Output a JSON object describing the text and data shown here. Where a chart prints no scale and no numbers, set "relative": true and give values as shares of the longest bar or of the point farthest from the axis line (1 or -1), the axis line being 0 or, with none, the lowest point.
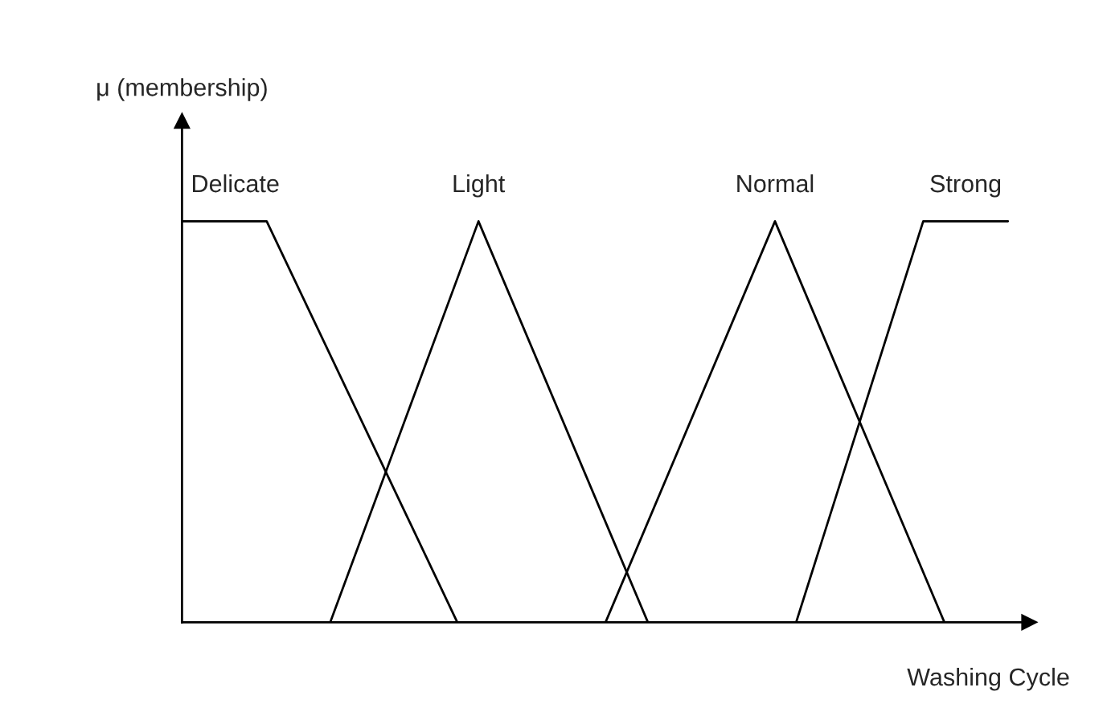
{
  "chart_data": {
    "type": "line",
    "relative": true,
    "xlabel": "Washing Cycle",
    "ylabel": "μ (membership)",
    "marker": "none",
    "line_style": "solid",
    "categories": [
      null,
      null,
      null,
      null,
      null,
      null,
      null,
      null,
      null,
      null,
      null,
      null,
      null,
      null,
      null,
      null,
      null,
      null,
      null,
      null,
      null,
      null,
      null,
      null,
      null,
      null,
      null,
      null,
      null,
      null,
      null,
      null,
      null,
      null,
      null,
      null,
      null,
      null,
      null,
      null,
      null
    ],
    "series": [
      {
        "name": "Delicate",
        "color": "#000000",
        "values": [
          1,
          null,
          null,
          null,
          1,
          null,
          null,
          null,
          null,
          null,
          null,
          null,
          null,
          0,
          null,
          null,
          null,
          null,
          null,
          null,
          null,
          null,
          null,
          null,
          null,
          null,
          null,
          null,
          null,
          null,
          null,
          null,
          null,
          null,
          null,
          null,
          null,
          null,
          null,
          null,
          null
        ]
      },
      {
        "name": "Light",
        "color": "#000000",
        "values": [
          null,
          null,
          null,
          null,
          null,
          null,
          null,
          0,
          null,
          null,
          null,
          null,
          null,
          null,
          1,
          null,
          null,
          null,
          null,
          null,
          null,
          null,
          0,
          null,
          null,
          null,
          null,
          null,
          null,
          null,
          null,
          null,
          null,
          null,
          null,
          null,
          null,
          null,
          null,
          null,
          null
        ]
      },
      {
        "name": "Normal",
        "color": "#000000",
        "values": [
          null,
          null,
          null,
          null,
          null,
          null,
          null,
          null,
          null,
          null,
          null,
          null,
          null,
          null,
          null,
          null,
          null,
          null,
          null,
          null,
          0,
          null,
          null,
          null,
          null,
          null,
          null,
          null,
          1,
          null,
          null,
          null,
          null,
          null,
          null,
          null,
          0,
          null,
          null,
          null,
          null
        ]
      },
      {
        "name": "Strong",
        "color": "#000000",
        "values": [
          null,
          null,
          null,
          null,
          null,
          null,
          null,
          null,
          null,
          null,
          null,
          null,
          null,
          null,
          null,
          null,
          null,
          null,
          null,
          null,
          null,
          null,
          null,
          null,
          null,
          null,
          null,
          null,
          null,
          0,
          null,
          null,
          null,
          null,
          null,
          1,
          null,
          null,
          null,
          1,
          null
        ]
      }
    ]
  }
}
